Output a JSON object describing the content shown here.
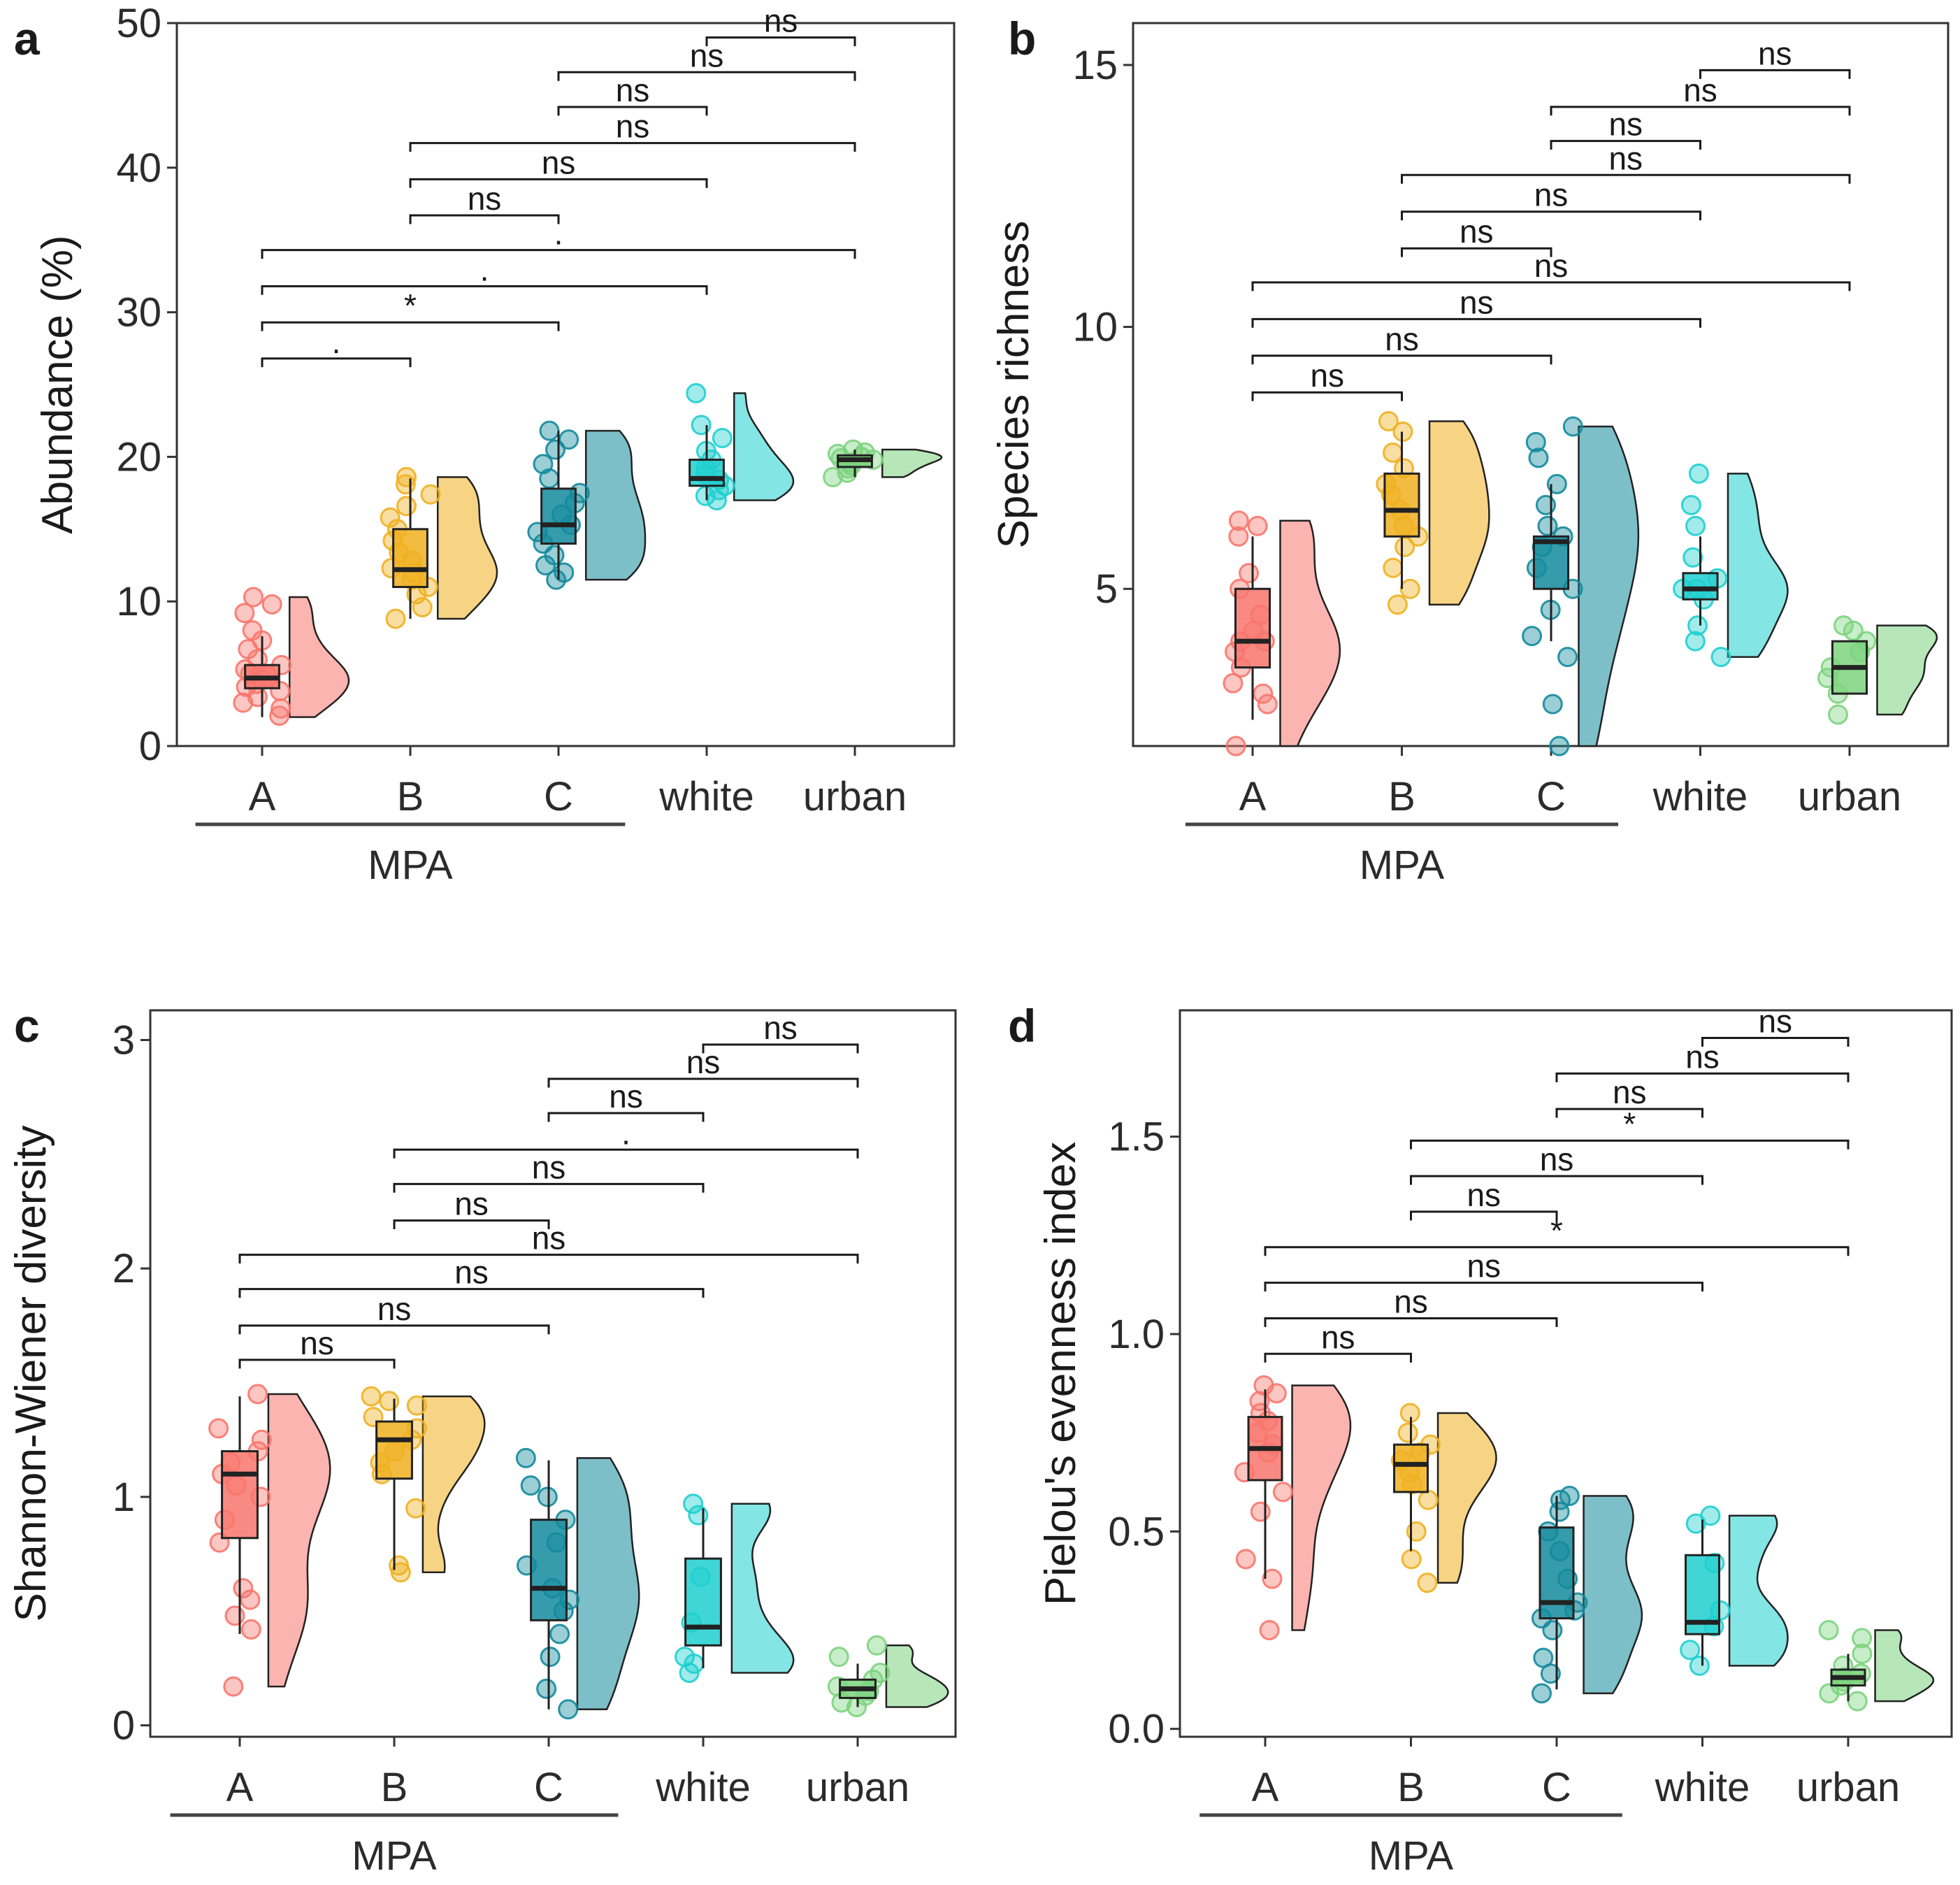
{
  "colors": {
    "A": "#F8766D",
    "B": "#F0B020",
    "C": "#138A9C",
    "white": "#1FCFCF",
    "urban": "#7CD37E"
  },
  "chart_data": [
    {
      "type": "raincloud",
      "panel": "a",
      "ylabel": "Abundance (%)",
      "ylim": [
        0,
        50
      ],
      "yticks": [
        0,
        10,
        20,
        30,
        40,
        50
      ],
      "categories": [
        "A",
        "B",
        "C",
        "white",
        "urban"
      ],
      "group_label": "MPA",
      "group_span": [
        "A",
        "C"
      ],
      "boxes": [
        {
          "category": "A",
          "q1": 4.0,
          "median": 4.7,
          "q3": 5.6,
          "whisker_low": 2.0,
          "whisker_high": 7.6,
          "points": [
            2.1,
            2.6,
            3.0,
            3.4,
            3.8,
            4.1,
            4.3,
            4.6,
            4.8,
            5.0,
            5.3,
            5.6,
            6.0,
            6.7,
            7.3,
            8.0,
            9.2,
            9.8,
            10.3
          ]
        },
        {
          "category": "B",
          "q1": 11.0,
          "median": 12.2,
          "q3": 15.0,
          "whisker_low": 8.8,
          "whisker_high": 18.5,
          "points": [
            8.8,
            9.6,
            10.5,
            11.0,
            11.5,
            12.0,
            12.3,
            12.8,
            13.4,
            14.2,
            15.0,
            15.8,
            16.6,
            17.4,
            18.1,
            18.6
          ]
        },
        {
          "category": "C",
          "q1": 14.0,
          "median": 15.3,
          "q3": 17.8,
          "whisker_low": 11.5,
          "whisker_high": 21.8,
          "points": [
            11.5,
            12.0,
            12.5,
            13.2,
            14.0,
            14.8,
            15.3,
            16.0,
            16.8,
            17.5,
            18.5,
            19.5,
            20.5,
            21.2,
            21.8
          ]
        },
        {
          "category": "white",
          "q1": 18.0,
          "median": 18.5,
          "q3": 19.8,
          "whisker_low": 17.0,
          "whisker_high": 22.2,
          "points": [
            17.0,
            17.3,
            17.7,
            18.0,
            18.4,
            18.8,
            19.2,
            19.8,
            20.4,
            21.3,
            22.2,
            24.4
          ]
        },
        {
          "category": "urban",
          "q1": 19.3,
          "median": 19.8,
          "q3": 20.1,
          "whisker_low": 18.6,
          "whisker_high": 20.5,
          "points": [
            18.6,
            18.9,
            19.2,
            19.4,
            19.6,
            19.8,
            19.9,
            20.0,
            20.2,
            20.3,
            20.5
          ]
        }
      ],
      "comparisons": [
        {
          "from": "white",
          "to": "urban",
          "label": "ns",
          "y": 49.0
        },
        {
          "from": "C",
          "to": "urban",
          "label": "ns",
          "y": 46.6
        },
        {
          "from": "C",
          "to": "white",
          "label": "ns",
          "y": 44.2
        },
        {
          "from": "B",
          "to": "urban",
          "label": "ns",
          "y": 41.7
        },
        {
          "from": "B",
          "to": "white",
          "label": "ns",
          "y": 39.2
        },
        {
          "from": "B",
          "to": "C",
          "label": "ns",
          "y": 36.7
        },
        {
          "from": "A",
          "to": "urban",
          "label": ".",
          "y": 34.3
        },
        {
          "from": "A",
          "to": "white",
          "label": ".",
          "y": 31.8
        },
        {
          "from": "A",
          "to": "C",
          "label": "*",
          "y": 29.3
        },
        {
          "from": "A",
          "to": "B",
          "label": ".",
          "y": 26.8
        }
      ]
    },
    {
      "type": "raincloud",
      "panel": "b",
      "ylabel": "Species richness",
      "ylim": [
        2,
        15.8
      ],
      "yticks": [
        5,
        10,
        15
      ],
      "categories": [
        "A",
        "B",
        "C",
        "white",
        "urban"
      ],
      "group_label": "MPA",
      "group_span": [
        "A",
        "C"
      ],
      "boxes": [
        {
          "category": "A",
          "q1": 3.5,
          "median": 4.0,
          "q3": 5.0,
          "whisker_low": 2.5,
          "whisker_high": 6.0,
          "points": [
            2.0,
            2.8,
            3.0,
            3.2,
            3.5,
            3.8,
            4.0,
            4.0,
            4.2,
            4.5,
            5.0,
            5.3,
            6.0,
            6.2,
            6.3
          ]
        },
        {
          "category": "B",
          "q1": 6.0,
          "median": 6.5,
          "q3": 7.2,
          "whisker_low": 5.0,
          "whisker_high": 8.0,
          "points": [
            4.7,
            5.0,
            5.4,
            5.8,
            6.0,
            6.2,
            6.5,
            6.8,
            7.0,
            7.3,
            7.6,
            8.0,
            8.2
          ]
        },
        {
          "category": "C",
          "q1": 5.0,
          "median": 5.9,
          "q3": 6.0,
          "whisker_low": 4.0,
          "whisker_high": 7.0,
          "points": [
            2.0,
            2.8,
            3.7,
            4.1,
            4.6,
            5.0,
            5.4,
            5.8,
            6.0,
            6.2,
            6.6,
            7.0,
            7.5,
            7.8,
            8.1
          ]
        },
        {
          "category": "white",
          "q1": 4.8,
          "median": 5.0,
          "q3": 5.3,
          "whisker_low": 4.3,
          "whisker_high": 6.0,
          "points": [
            3.7,
            4.0,
            4.3,
            4.8,
            5.0,
            5.0,
            5.2,
            5.6,
            6.2,
            6.6,
            7.2
          ]
        },
        {
          "category": "urban",
          "q1": 3.0,
          "median": 3.5,
          "q3": 4.0,
          "whisker_low": 3.0,
          "whisker_high": 4.0,
          "points": [
            2.6,
            3.0,
            3.3,
            3.5,
            3.8,
            4.0,
            4.2,
            4.3
          ]
        }
      ],
      "comparisons": [
        {
          "from": "white",
          "to": "urban",
          "label": "ns",
          "y": 14.9
        },
        {
          "from": "C",
          "to": "urban",
          "label": "ns",
          "y": 14.2
        },
        {
          "from": "C",
          "to": "white",
          "label": "ns",
          "y": 13.55
        },
        {
          "from": "B",
          "to": "urban",
          "label": "ns",
          "y": 12.9
        },
        {
          "from": "B",
          "to": "white",
          "label": "ns",
          "y": 12.2
        },
        {
          "from": "B",
          "to": "C",
          "label": "ns",
          "y": 11.5
        },
        {
          "from": "A",
          "to": "urban",
          "label": "ns",
          "y": 10.85
        },
        {
          "from": "A",
          "to": "white",
          "label": "ns",
          "y": 10.15
        },
        {
          "from": "A",
          "to": "C",
          "label": "ns",
          "y": 9.45
        },
        {
          "from": "A",
          "to": "B",
          "label": "ns",
          "y": 8.75
        }
      ]
    },
    {
      "type": "raincloud",
      "panel": "c",
      "ylabel": "Shannon-Wiener diversity",
      "ylim": [
        -0.05,
        3.13
      ],
      "yticks": [
        0,
        1,
        2,
        3
      ],
      "categories": [
        "A",
        "B",
        "C",
        "white",
        "urban"
      ],
      "group_label": "MPA",
      "group_span": [
        "A",
        "C"
      ],
      "boxes": [
        {
          "category": "A",
          "q1": 0.82,
          "median": 1.1,
          "q3": 1.2,
          "whisker_low": 0.4,
          "whisker_high": 1.44,
          "points": [
            0.17,
            0.42,
            0.48,
            0.55,
            0.6,
            0.8,
            0.9,
            1.0,
            1.05,
            1.1,
            1.15,
            1.2,
            1.25,
            1.3,
            1.45
          ]
        },
        {
          "category": "B",
          "q1": 1.08,
          "median": 1.25,
          "q3": 1.33,
          "whisker_low": 0.68,
          "whisker_high": 1.43,
          "points": [
            0.67,
            0.7,
            0.95,
            1.1,
            1.15,
            1.2,
            1.25,
            1.3,
            1.35,
            1.4,
            1.42,
            1.44
          ]
        },
        {
          "category": "C",
          "q1": 0.46,
          "median": 0.6,
          "q3": 0.9,
          "whisker_low": 0.07,
          "whisker_high": 1.16,
          "points": [
            0.07,
            0.16,
            0.3,
            0.4,
            0.5,
            0.55,
            0.6,
            0.7,
            0.8,
            0.9,
            1.0,
            1.05,
            1.17
          ]
        },
        {
          "category": "white",
          "q1": 0.35,
          "median": 0.43,
          "q3": 0.73,
          "whisker_low": 0.25,
          "whisker_high": 0.95,
          "points": [
            0.23,
            0.27,
            0.3,
            0.45,
            0.65,
            0.92,
            0.97
          ]
        },
        {
          "category": "urban",
          "q1": 0.12,
          "median": 0.16,
          "q3": 0.2,
          "whisker_low": 0.08,
          "whisker_high": 0.27,
          "points": [
            0.08,
            0.1,
            0.13,
            0.15,
            0.17,
            0.2,
            0.23,
            0.3,
            0.35
          ]
        }
      ],
      "comparisons": [
        {
          "from": "white",
          "to": "urban",
          "label": "ns",
          "y": 2.98
        },
        {
          "from": "C",
          "to": "urban",
          "label": "ns",
          "y": 2.83
        },
        {
          "from": "C",
          "to": "white",
          "label": "ns",
          "y": 2.68
        },
        {
          "from": "B",
          "to": "urban",
          "label": ".",
          "y": 2.52
        },
        {
          "from": "B",
          "to": "white",
          "label": "ns",
          "y": 2.37
        },
        {
          "from": "B",
          "to": "C",
          "label": "ns",
          "y": 2.21
        },
        {
          "from": "A",
          "to": "urban",
          "label": "ns",
          "y": 2.06
        },
        {
          "from": "A",
          "to": "white",
          "label": "ns",
          "y": 1.91
        },
        {
          "from": "A",
          "to": "C",
          "label": "ns",
          "y": 1.75
        },
        {
          "from": "A",
          "to": "B",
          "label": "ns",
          "y": 1.6
        }
      ]
    },
    {
      "type": "raincloud",
      "panel": "d",
      "ylabel": "Pielou's evenness index",
      "ylim": [
        -0.02,
        1.82
      ],
      "yticks": [
        0.0,
        0.5,
        1.0,
        1.5
      ],
      "ytick_labels": [
        "0.0",
        "0.5",
        "1.0",
        "1.5"
      ],
      "categories": [
        "A",
        "B",
        "C",
        "white",
        "urban"
      ],
      "group_label": "MPA",
      "group_span": [
        "A",
        "C"
      ],
      "boxes": [
        {
          "category": "A",
          "q1": 0.63,
          "median": 0.71,
          "q3": 0.79,
          "whisker_low": 0.38,
          "whisker_high": 0.86,
          "points": [
            0.25,
            0.38,
            0.43,
            0.55,
            0.6,
            0.65,
            0.7,
            0.72,
            0.75,
            0.78,
            0.8,
            0.83,
            0.85,
            0.87
          ]
        },
        {
          "category": "B",
          "q1": 0.6,
          "median": 0.67,
          "q3": 0.72,
          "whisker_low": 0.45,
          "whisker_high": 0.79,
          "points": [
            0.37,
            0.43,
            0.5,
            0.58,
            0.62,
            0.65,
            0.68,
            0.7,
            0.72,
            0.75,
            0.8
          ]
        },
        {
          "category": "C",
          "q1": 0.28,
          "median": 0.32,
          "q3": 0.51,
          "whisker_low": 0.1,
          "whisker_high": 0.59,
          "points": [
            0.09,
            0.14,
            0.18,
            0.25,
            0.28,
            0.3,
            0.32,
            0.38,
            0.45,
            0.5,
            0.55,
            0.58,
            0.59
          ]
        },
        {
          "category": "white",
          "q1": 0.24,
          "median": 0.27,
          "q3": 0.44,
          "whisker_low": 0.16,
          "whisker_high": 0.53,
          "points": [
            0.16,
            0.2,
            0.26,
            0.3,
            0.42,
            0.52,
            0.54
          ]
        },
        {
          "category": "urban",
          "q1": 0.11,
          "median": 0.13,
          "q3": 0.15,
          "whisker_low": 0.07,
          "whisker_high": 0.19,
          "points": [
            0.07,
            0.09,
            0.11,
            0.12,
            0.13,
            0.14,
            0.16,
            0.19,
            0.23,
            0.25
          ]
        }
      ],
      "comparisons": [
        {
          "from": "white",
          "to": "urban",
          "label": "ns",
          "y": 1.75
        },
        {
          "from": "C",
          "to": "urban",
          "label": "ns",
          "y": 1.66
        },
        {
          "from": "C",
          "to": "white",
          "label": "ns",
          "y": 1.57
        },
        {
          "from": "B",
          "to": "urban",
          "label": "*",
          "y": 1.49
        },
        {
          "from": "B",
          "to": "white",
          "label": "ns",
          "y": 1.4
        },
        {
          "from": "B",
          "to": "C",
          "label": "ns",
          "y": 1.31
        },
        {
          "from": "A",
          "to": "urban",
          "label": "*",
          "y": 1.22
        },
        {
          "from": "A",
          "to": "white",
          "label": "ns",
          "y": 1.13
        },
        {
          "from": "A",
          "to": "C",
          "label": "ns",
          "y": 1.04
        },
        {
          "from": "A",
          "to": "B",
          "label": "ns",
          "y": 0.95
        }
      ]
    }
  ]
}
